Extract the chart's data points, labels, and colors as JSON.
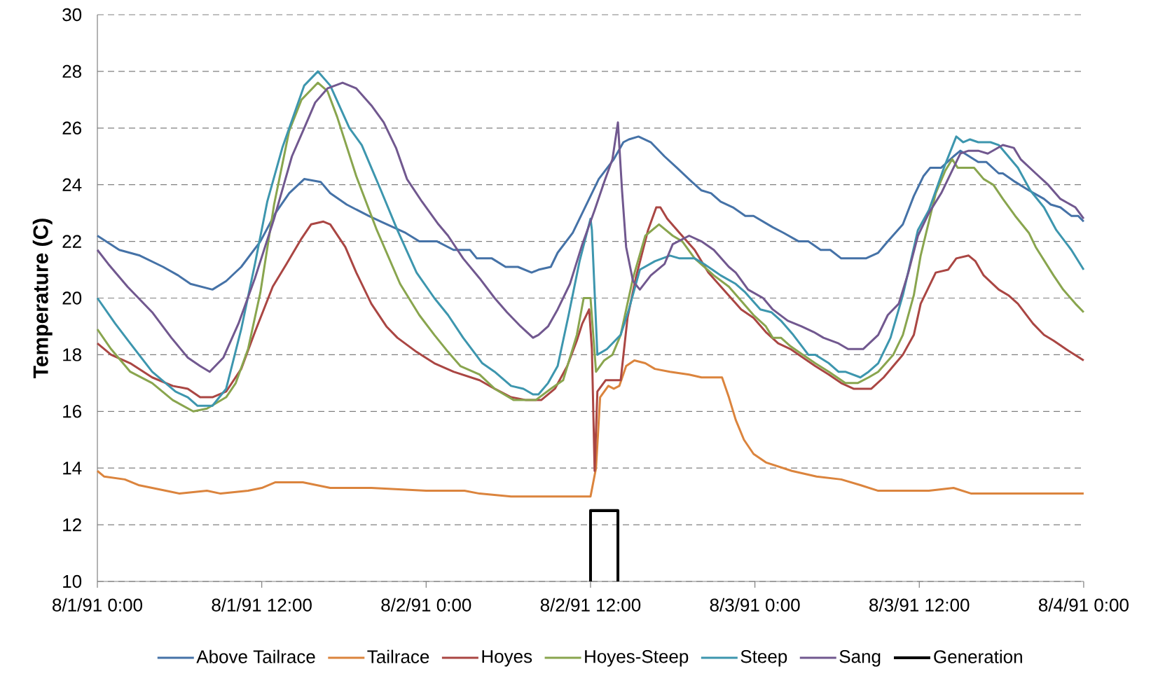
{
  "chart_data": {
    "type": "line",
    "ylabel": "Temperature (C)",
    "xlim": [
      "1991-08-01T00:00",
      "1991-08-04T00:00"
    ],
    "ylim": [
      10,
      30
    ],
    "xticks": [
      {
        "value": "1991-08-01T00:00",
        "label": "8/1/91 0:00"
      },
      {
        "value": "1991-08-01T12:00",
        "label": "8/1/91 12:00"
      },
      {
        "value": "1991-08-02T00:00",
        "label": "8/2/91 0:00"
      },
      {
        "value": "1991-08-02T12:00",
        "label": "8/2/91 12:00"
      },
      {
        "value": "1991-08-03T00:00",
        "label": "8/3/91 0:00"
      },
      {
        "value": "1991-08-03T12:00",
        "label": "8/3/91 12:00"
      },
      {
        "value": "1991-08-04T00:00",
        "label": "8/4/91 0:00"
      }
    ],
    "yticks": [
      10,
      12,
      14,
      16,
      18,
      20,
      22,
      24,
      26,
      28,
      30
    ],
    "grid": "y",
    "legend": "bottom",
    "marker": "none",
    "line_style": "solid",
    "series": [
      {
        "name": "Above Tailrace",
        "color": "#4572a7",
        "x": [
          "1991-08-01T00:00",
          "1991-08-01T01:36",
          "1991-08-01T03:06",
          "1991-08-01T04:48",
          "1991-08-01T05:54",
          "1991-08-01T06:48",
          "1991-08-01T08:24",
          "1991-08-01T09:24",
          "1991-08-01T10:30",
          "1991-08-01T11:54",
          "1991-08-01T13:00",
          "1991-08-01T14:00",
          "1991-08-01T15:06",
          "1991-08-01T16:18",
          "1991-08-01T17:00",
          "1991-08-01T18:12",
          "1991-08-01T19:48",
          "1991-08-01T20:42",
          "1991-08-01T22:30",
          "1991-08-01T23:30",
          "1991-08-02T00:48",
          "1991-08-02T02:00",
          "1991-08-02T03:12",
          "1991-08-02T03:42",
          "1991-08-02T04:48",
          "1991-08-02T05:48",
          "1991-08-02T06:42",
          "1991-08-02T07:42",
          "1991-08-02T08:12",
          "1991-08-02T09:06",
          "1991-08-02T09:36",
          "1991-08-02T10:42",
          "1991-08-02T11:24",
          "1991-08-02T12:36",
          "1991-08-02T13:42",
          "1991-08-02T14:24",
          "1991-08-02T14:48",
          "1991-08-02T15:30",
          "1991-08-02T16:24",
          "1991-08-02T17:24",
          "1991-08-02T18:18",
          "1991-08-02T19:24",
          "1991-08-02T20:06",
          "1991-08-02T20:48",
          "1991-08-02T21:30",
          "1991-08-02T22:24",
          "1991-08-02T23:18",
          "1991-08-02T23:54",
          "1991-08-03T01:18",
          "1991-08-03T02:06",
          "1991-08-03T03:12",
          "1991-08-03T03:54",
          "1991-08-03T04:48",
          "1991-08-03T05:30",
          "1991-08-03T06:18",
          "1991-08-03T08:06",
          "1991-08-03T09:00",
          "1991-08-03T09:42",
          "1991-08-03T10:48",
          "1991-08-03T11:36",
          "1991-08-03T12:18",
          "1991-08-03T12:48",
          "1991-08-03T13:36",
          "1991-08-03T14:30",
          "1991-08-03T15:00",
          "1991-08-03T16:18",
          "1991-08-03T16:54",
          "1991-08-03T17:48",
          "1991-08-03T18:06",
          "1991-08-03T19:00",
          "1991-08-03T20:00",
          "1991-08-03T21:06",
          "1991-08-03T21:36",
          "1991-08-03T22:18",
          "1991-08-03T23:06",
          "1991-08-03T23:36",
          "1991-08-04T00:00"
        ],
        "values": [
          22.2,
          21.7,
          21.5,
          21.1,
          20.8,
          20.5,
          20.3,
          20.6,
          21.1,
          22.0,
          23.0,
          23.7,
          24.2,
          24.1,
          23.7,
          23.3,
          22.9,
          22.7,
          22.3,
          22.0,
          22.0,
          21.7,
          21.7,
          21.4,
          21.4,
          21.1,
          21.1,
          20.9,
          21.0,
          21.1,
          21.6,
          22.3,
          23.0,
          24.2,
          24.9,
          25.5,
          25.6,
          25.7,
          25.5,
          25.0,
          24.6,
          24.1,
          23.8,
          23.7,
          23.4,
          23.2,
          22.9,
          22.9,
          22.5,
          22.3,
          22.0,
          22.0,
          21.7,
          21.7,
          21.4,
          21.4,
          21.6,
          22.0,
          22.6,
          23.6,
          24.3,
          24.6,
          24.6,
          25.0,
          25.2,
          24.8,
          24.8,
          24.4,
          24.4,
          24.1,
          23.8,
          23.5,
          23.3,
          23.2,
          22.9,
          22.9,
          22.7
        ]
      },
      {
        "name": "Tailrace",
        "color": "#db843d",
        "x": [
          "1991-08-01T00:00",
          "1991-08-01T00:30",
          "1991-08-01T02:00",
          "1991-08-01T03:00",
          "1991-08-01T05:00",
          "1991-08-01T06:00",
          "1991-08-01T08:00",
          "1991-08-01T09:00",
          "1991-08-01T11:00",
          "1991-08-01T12:00",
          "1991-08-01T13:00",
          "1991-08-01T15:00",
          "1991-08-01T16:00",
          "1991-08-01T17:00",
          "1991-08-01T20:00",
          "1991-08-02T00:00",
          "1991-08-02T01:36",
          "1991-08-02T02:48",
          "1991-08-02T03:54",
          "1991-08-02T06:12",
          "1991-08-02T08:30",
          "1991-08-02T10:48",
          "1991-08-02T12:00",
          "1991-08-02T12:24",
          "1991-08-02T12:42",
          "1991-08-02T13:18",
          "1991-08-02T13:42",
          "1991-08-02T14:06",
          "1991-08-02T14:36",
          "1991-08-02T15:12",
          "1991-08-02T16:00",
          "1991-08-02T16:42",
          "1991-08-02T17:48",
          "1991-08-02T19:12",
          "1991-08-02T20:06",
          "1991-08-02T21:36",
          "1991-08-02T22:06",
          "1991-08-02T22:36",
          "1991-08-02T23:12",
          "1991-08-02T23:54",
          "1991-08-03T00:48",
          "1991-08-03T02:42",
          "1991-08-03T04:30",
          "1991-08-03T06:18",
          "1991-08-03T07:42",
          "1991-08-03T09:00",
          "1991-08-03T10:48",
          "1991-08-03T12:42",
          "1991-08-03T14:30",
          "1991-08-03T15:48",
          "1991-08-03T18:06",
          "1991-08-04T00:00"
        ],
        "values": [
          13.9,
          13.7,
          13.6,
          13.4,
          13.2,
          13.1,
          13.2,
          13.1,
          13.2,
          13.3,
          13.5,
          13.5,
          13.4,
          13.3,
          13.3,
          13.2,
          13.2,
          13.2,
          13.1,
          13.0,
          13.0,
          13.0,
          13.0,
          14.0,
          16.5,
          16.9,
          16.8,
          16.9,
          17.6,
          17.8,
          17.7,
          17.5,
          17.4,
          17.3,
          17.2,
          17.2,
          16.5,
          15.7,
          15.0,
          14.5,
          14.2,
          13.9,
          13.7,
          13.6,
          13.4,
          13.2,
          13.2,
          13.2,
          13.3,
          13.1,
          13.1,
          13.1
        ]
      },
      {
        "name": "Hoyes",
        "color": "#aa4643",
        "x": [
          "1991-08-01T00:00",
          "1991-08-01T01:00",
          "1991-08-01T02:24",
          "1991-08-01T04:00",
          "1991-08-01T05:30",
          "1991-08-01T06:36",
          "1991-08-01T07:30",
          "1991-08-01T08:24",
          "1991-08-01T09:24",
          "1991-08-01T10:30",
          "1991-08-01T11:30",
          "1991-08-01T12:48",
          "1991-08-01T13:48",
          "1991-08-01T14:54",
          "1991-08-01T15:36",
          "1991-08-01T16:30",
          "1991-08-01T17:00",
          "1991-08-01T18:06",
          "1991-08-01T18:54",
          "1991-08-01T20:00",
          "1991-08-01T21:06",
          "1991-08-01T21:54",
          "1991-08-01T23:18",
          "1991-08-02T00:36",
          "1991-08-02T02:00",
          "1991-08-02T03:54",
          "1991-08-02T05:00",
          "1991-08-02T06:12",
          "1991-08-02T07:18",
          "1991-08-02T08:24",
          "1991-08-02T09:24",
          "1991-08-02T10:18",
          "1991-08-02T11:00",
          "1991-08-02T11:24",
          "1991-08-02T11:54",
          "1991-08-02T12:06",
          "1991-08-02T12:18",
          "1991-08-02T12:30",
          "1991-08-02T13:06",
          "1991-08-02T14:12",
          "1991-08-02T14:42",
          "1991-08-02T15:18",
          "1991-08-02T16:12",
          "1991-08-02T16:48",
          "1991-08-02T17:06",
          "1991-08-02T17:36",
          "1991-08-02T18:30",
          "1991-08-02T19:36",
          "1991-08-02T20:36",
          "1991-08-02T21:42",
          "1991-08-02T23:00",
          "1991-08-02T23:54",
          "1991-08-03T00:48",
          "1991-08-03T01:42",
          "1991-08-03T02:36",
          "1991-08-03T03:30",
          "1991-08-03T04:24",
          "1991-08-03T05:24",
          "1991-08-03T06:18",
          "1991-08-03T07:12",
          "1991-08-03T08:30",
          "1991-08-03T09:24",
          "1991-08-03T10:06",
          "1991-08-03T10:48",
          "1991-08-03T11:36",
          "1991-08-03T12:06",
          "1991-08-03T13:12",
          "1991-08-03T14:06",
          "1991-08-03T14:42",
          "1991-08-03T15:36",
          "1991-08-03T16:06",
          "1991-08-03T16:42",
          "1991-08-03T17:48",
          "1991-08-03T18:30",
          "1991-08-03T19:12",
          "1991-08-03T20:18",
          "1991-08-03T21:06",
          "1991-08-03T21:48",
          "1991-08-03T22:42",
          "1991-08-04T00:00"
        ],
        "values": [
          18.4,
          18.0,
          17.7,
          17.2,
          16.9,
          16.8,
          16.5,
          16.5,
          16.7,
          17.5,
          18.8,
          20.4,
          21.2,
          22.1,
          22.6,
          22.7,
          22.6,
          21.8,
          20.9,
          19.8,
          19.0,
          18.6,
          18.1,
          17.7,
          17.4,
          17.1,
          16.8,
          16.5,
          16.4,
          16.4,
          16.8,
          17.6,
          18.5,
          19.1,
          19.6,
          18.2,
          13.9,
          16.7,
          17.1,
          17.1,
          19.3,
          20.7,
          22.4,
          23.2,
          23.2,
          22.8,
          22.3,
          21.7,
          20.9,
          20.3,
          19.6,
          19.3,
          18.8,
          18.4,
          18.2,
          17.9,
          17.6,
          17.3,
          17.0,
          16.8,
          16.8,
          17.2,
          17.6,
          18.0,
          18.7,
          19.8,
          20.9,
          21.0,
          21.4,
          21.5,
          21.3,
          20.8,
          20.3,
          20.1,
          19.8,
          19.1,
          18.7,
          18.5,
          18.2,
          17.8
        ]
      },
      {
        "name": "Hoyes-Steep",
        "color": "#89a54e",
        "x": [
          "1991-08-01T00:00",
          "1991-08-01T01:00",
          "1991-08-01T02:24",
          "1991-08-01T04:00",
          "1991-08-01T05:30",
          "1991-08-01T07:00",
          "1991-08-01T08:00",
          "1991-08-01T09:24",
          "1991-08-01T10:06",
          "1991-08-01T11:00",
          "1991-08-01T11:54",
          "1991-08-01T12:54",
          "1991-08-01T14:00",
          "1991-08-01T14:54",
          "1991-08-01T16:06",
          "1991-08-01T16:48",
          "1991-08-01T17:30",
          "1991-08-01T18:54",
          "1991-08-01T20:24",
          "1991-08-01T22:06",
          "1991-08-01T23:30",
          "1991-08-02T00:36",
          "1991-08-02T01:36",
          "1991-08-02T02:30",
          "1991-08-02T03:54",
          "1991-08-02T05:00",
          "1991-08-02T06:24",
          "1991-08-02T08:00",
          "1991-08-02T09:06",
          "1991-08-02T10:00",
          "1991-08-02T11:00",
          "1991-08-02T11:30",
          "1991-08-02T12:00",
          "1991-08-02T12:24",
          "1991-08-02T13:00",
          "1991-08-02T13:36",
          "1991-08-02T14:12",
          "1991-08-02T15:06",
          "1991-08-02T16:00",
          "1991-08-02T17:00",
          "1991-08-02T18:00",
          "1991-08-02T18:42",
          "1991-08-02T19:36",
          "1991-08-02T21:00",
          "1991-08-02T22:06",
          "1991-08-02T23:00",
          "1991-08-02T23:54",
          "1991-08-03T00:48",
          "1991-08-03T01:18",
          "1991-08-03T01:54",
          "1991-08-03T02:36",
          "1991-08-03T03:30",
          "1991-08-03T04:24",
          "1991-08-03T05:24",
          "1991-08-03T06:36",
          "1991-08-03T07:30",
          "1991-08-03T08:18",
          "1991-08-03T09:00",
          "1991-08-03T10:06",
          "1991-08-03T10:48",
          "1991-08-03T11:36",
          "1991-08-03T12:06",
          "1991-08-03T13:12",
          "1991-08-03T13:54",
          "1991-08-03T14:24",
          "1991-08-03T14:48",
          "1991-08-03T16:00",
          "1991-08-03T16:42",
          "1991-08-03T17:24",
          "1991-08-03T18:06",
          "1991-08-03T19:00",
          "1991-08-03T20:00",
          "1991-08-03T20:30",
          "1991-08-03T21:48",
          "1991-08-03T22:30",
          "1991-08-03T23:24",
          "1991-08-04T00:00"
        ],
        "values": [
          18.9,
          18.2,
          17.4,
          17.0,
          16.4,
          16.0,
          16.1,
          16.5,
          17.0,
          18.2,
          20.2,
          23.3,
          25.9,
          27.0,
          27.6,
          27.3,
          26.4,
          24.3,
          22.4,
          20.5,
          19.4,
          18.7,
          18.1,
          17.6,
          17.3,
          16.8,
          16.4,
          16.4,
          16.8,
          17.1,
          18.7,
          20.0,
          20.0,
          17.4,
          17.8,
          18.0,
          18.7,
          20.7,
          22.2,
          22.6,
          22.2,
          22.0,
          21.4,
          20.8,
          20.4,
          19.9,
          19.4,
          19.0,
          18.6,
          18.6,
          18.3,
          18.0,
          17.7,
          17.4,
          17.0,
          17.0,
          17.2,
          17.4,
          18.0,
          18.7,
          20.1,
          21.5,
          23.7,
          24.5,
          24.9,
          24.6,
          24.6,
          24.2,
          24.0,
          23.5,
          22.9,
          22.3,
          21.8,
          20.8,
          20.3,
          19.8,
          19.5
        ]
      },
      {
        "name": "Steep",
        "color": "#3d96ae",
        "x": [
          "1991-08-01T00:00",
          "1991-08-01T01:18",
          "1991-08-01T02:24",
          "1991-08-01T04:00",
          "1991-08-01T05:42",
          "1991-08-01T06:36",
          "1991-08-01T07:18",
          "1991-08-01T08:24",
          "1991-08-01T09:24",
          "1991-08-01T10:30",
          "1991-08-01T11:30",
          "1991-08-01T12:24",
          "1991-08-01T13:30",
          "1991-08-01T15:06",
          "1991-08-01T16:06",
          "1991-08-01T17:00",
          "1991-08-01T18:24",
          "1991-08-01T19:18",
          "1991-08-01T20:42",
          "1991-08-01T21:54",
          "1991-08-01T23:18",
          "1991-08-02T00:36",
          "1991-08-02T01:36",
          "1991-08-02T02:42",
          "1991-08-02T04:06",
          "1991-08-02T05:00",
          "1991-08-02T06:12",
          "1991-08-02T07:06",
          "1991-08-02T07:48",
          "1991-08-02T08:12",
          "1991-08-02T08:54",
          "1991-08-02T09:36",
          "1991-08-02T10:24",
          "1991-08-02T11:12",
          "1991-08-02T12:00",
          "1991-08-02T12:06",
          "1991-08-02T12:30",
          "1991-08-02T13:12",
          "1991-08-02T14:12",
          "1991-08-02T14:48",
          "1991-08-02T15:36",
          "1991-08-02T16:42",
          "1991-08-02T17:48",
          "1991-08-02T18:30",
          "1991-08-02T19:36",
          "1991-08-02T20:18",
          "1991-08-02T21:30",
          "1991-08-02T22:36",
          "1991-08-02T23:18",
          "1991-08-03T00:24",
          "1991-08-03T01:12",
          "1991-08-03T01:54",
          "1991-08-03T02:48",
          "1991-08-03T03:54",
          "1991-08-03T04:24",
          "1991-08-03T05:24",
          "1991-08-03T06:06",
          "1991-08-03T06:36",
          "1991-08-03T07:42",
          "1991-08-03T08:18",
          "1991-08-03T09:00",
          "1991-08-03T09:54",
          "1991-08-03T10:48",
          "1991-08-03T11:54",
          "1991-08-03T12:42",
          "1991-08-03T13:48",
          "1991-08-03T14:42",
          "1991-08-03T15:12",
          "1991-08-03T15:42",
          "1991-08-03T16:18",
          "1991-08-03T17:12",
          "1991-08-03T17:48",
          "1991-08-03T19:12",
          "1991-08-03T20:06",
          "1991-08-03T21:06",
          "1991-08-03T22:00",
          "1991-08-03T23:06",
          "1991-08-04T00:00"
        ],
        "values": [
          20.0,
          19.1,
          18.4,
          17.4,
          16.7,
          16.5,
          16.2,
          16.2,
          16.8,
          18.9,
          21.2,
          23.4,
          25.3,
          27.5,
          28.0,
          27.5,
          26.0,
          25.4,
          23.8,
          22.4,
          20.9,
          20.0,
          19.4,
          18.6,
          17.7,
          17.4,
          16.9,
          16.8,
          16.6,
          16.6,
          17.0,
          17.6,
          19.4,
          21.3,
          22.8,
          22.4,
          18.0,
          18.2,
          18.7,
          19.6,
          21.0,
          21.3,
          21.5,
          21.4,
          21.4,
          21.2,
          20.8,
          20.5,
          20.2,
          19.6,
          19.5,
          19.2,
          18.7,
          18.0,
          18.0,
          17.7,
          17.4,
          17.4,
          17.2,
          17.4,
          17.7,
          18.6,
          20.1,
          22.4,
          23.1,
          24.6,
          25.7,
          25.5,
          25.6,
          25.5,
          25.5,
          25.4,
          24.6,
          23.8,
          23.2,
          22.4,
          21.7,
          21.0
        ]
      },
      {
        "name": "Sang",
        "color": "#71588f",
        "x": [
          "1991-08-01T00:00",
          "1991-08-01T00:48",
          "1991-08-01T02:12",
          "1991-08-01T04:00",
          "1991-08-01T05:24",
          "1991-08-01T06:36",
          "1991-08-01T07:30",
          "1991-08-01T08:12",
          "1991-08-01T09:12",
          "1991-08-01T10:18",
          "1991-08-01T11:30",
          "1991-08-01T12:54",
          "1991-08-01T14:12",
          "1991-08-01T15:06",
          "1991-08-01T15:54",
          "1991-08-01T16:48",
          "1991-08-01T17:54",
          "1991-08-01T18:54",
          "1991-08-01T20:00",
          "1991-08-01T20:54",
          "1991-08-01T21:48",
          "1991-08-01T22:36",
          "1991-08-01T23:42",
          "1991-08-02T00:54",
          "1991-08-02T01:36",
          "1991-08-02T02:42",
          "1991-08-02T03:54",
          "1991-08-02T05:00",
          "1991-08-02T05:54",
          "1991-08-02T06:54",
          "1991-08-02T07:48",
          "1991-08-02T08:12",
          "1991-08-02T08:54",
          "1991-08-02T09:36",
          "1991-08-02T10:30",
          "1991-08-02T11:24",
          "1991-08-02T12:18",
          "1991-08-02T13:00",
          "1991-08-02T13:36",
          "1991-08-02T14:00",
          "1991-08-02T14:18",
          "1991-08-02T14:36",
          "1991-08-02T15:06",
          "1991-08-02T15:36",
          "1991-08-02T16:24",
          "1991-08-02T17:24",
          "1991-08-02T18:00",
          "1991-08-02T19:12",
          "1991-08-02T20:06",
          "1991-08-02T21:00",
          "1991-08-02T22:06",
          "1991-08-02T22:36",
          "1991-08-02T23:30",
          "1991-08-03T00:36",
          "1991-08-03T01:18",
          "1991-08-03T02:24",
          "1991-08-03T03:24",
          "1991-08-03T04:18",
          "1991-08-03T05:00",
          "1991-08-03T06:06",
          "1991-08-03T06:48",
          "1991-08-03T07:54",
          "1991-08-03T09:00",
          "1991-08-03T09:42",
          "1991-08-03T10:30",
          "1991-08-03T11:12",
          "1991-08-03T11:54",
          "1991-08-03T12:42",
          "1991-08-03T13:36",
          "1991-08-03T14:30",
          "1991-08-03T15:00",
          "1991-08-03T15:36",
          "1991-08-03T16:18",
          "1991-08-03T17:00",
          "1991-08-03T18:06",
          "1991-08-03T18:54",
          "1991-08-03T19:24",
          "1991-08-03T20:30",
          "1991-08-03T21:24",
          "1991-08-03T22:18",
          "1991-08-03T23:24",
          "1991-08-04T00:00"
        ],
        "values": [
          21.7,
          21.2,
          20.4,
          19.5,
          18.6,
          17.9,
          17.6,
          17.4,
          17.9,
          19.1,
          20.7,
          22.8,
          25.0,
          26.0,
          26.9,
          27.4,
          27.6,
          27.4,
          26.8,
          26.2,
          25.3,
          24.2,
          23.4,
          22.6,
          22.2,
          21.4,
          20.7,
          20.0,
          19.5,
          19.0,
          18.6,
          18.7,
          19.0,
          19.6,
          20.5,
          21.9,
          23.1,
          24.1,
          24.9,
          26.2,
          23.8,
          21.8,
          20.6,
          20.3,
          20.8,
          21.2,
          21.9,
          22.2,
          22.0,
          21.7,
          21.1,
          20.9,
          20.3,
          20.0,
          19.6,
          19.2,
          19.0,
          18.8,
          18.6,
          18.4,
          18.2,
          18.2,
          18.7,
          19.4,
          19.8,
          20.9,
          22.2,
          23.0,
          23.7,
          24.6,
          25.1,
          25.2,
          25.2,
          25.1,
          25.4,
          25.3,
          24.9,
          24.4,
          24.0,
          23.5,
          23.2,
          22.8
        ]
      },
      {
        "name": "Generation",
        "color": "#000000",
        "x": [
          "1991-08-02T12:00",
          "1991-08-02T12:00",
          "1991-08-02T14:00",
          "1991-08-02T14:00"
        ],
        "values": [
          10,
          12.5,
          12.5,
          10
        ]
      }
    ]
  }
}
